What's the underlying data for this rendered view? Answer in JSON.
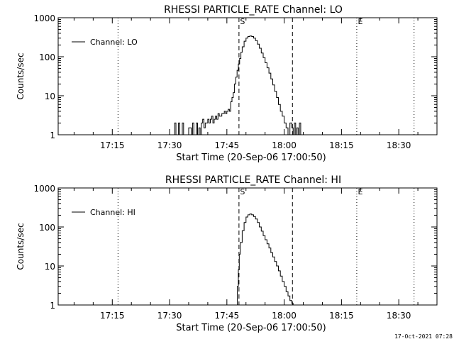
{
  "footer": {
    "timestamp": "17-Oct-2021 07:28"
  },
  "chart_data": [
    {
      "type": "line",
      "title": "RHESSI PARTICLE_RATE Channel: LO",
      "xlabel": "Start Time (20-Sep-06 17:00:50)",
      "ylabel": "Counts/sec",
      "yscale": "log",
      "ylim": [
        1,
        1000
      ],
      "xlim": [
        "17:00:50",
        "18:40:00"
      ],
      "xticks": [
        "17:15",
        "17:30",
        "17:45",
        "18:00",
        "18:15",
        "18:30"
      ],
      "yticks": [
        "1",
        "10",
        "100",
        "1000"
      ],
      "legend": {
        "label": "Channel: LO",
        "placement": "top-left"
      },
      "markers": [
        {
          "label": "",
          "time": "17:16:30",
          "style": "dotted"
        },
        {
          "label": "S",
          "time": "17:48:10",
          "style": "dashed"
        },
        {
          "label": "",
          "time": "18:02:10",
          "style": "dashed"
        },
        {
          "label": "E",
          "time": "18:19:00",
          "style": "dotted"
        },
        {
          "label": "",
          "time": "18:34:00",
          "style": "dotted"
        }
      ],
      "series": [
        {
          "x": [
            "17:31:00",
            "17:31:20",
            "17:31:40",
            "17:32:00",
            "17:32:20",
            "17:32:40",
            "17:33:00",
            "17:33:20",
            "17:33:40",
            "17:34:00",
            "17:34:20",
            "17:35:00",
            "17:35:40",
            "17:36:00",
            "17:36:20",
            "17:36:40",
            "17:37:00",
            "17:37:20",
            "17:37:40",
            "17:38:00",
            "17:38:20",
            "17:38:40",
            "17:39:00",
            "17:39:20",
            "17:39:40",
            "17:40:00",
            "17:40:20",
            "17:40:40",
            "17:41:00",
            "17:41:20",
            "17:41:40",
            "17:42:00",
            "17:42:20",
            "17:42:40",
            "17:43:00",
            "17:43:20",
            "17:43:40",
            "17:44:00",
            "17:44:20",
            "17:44:40",
            "17:45:00",
            "17:45:20",
            "17:45:40",
            "17:46:00",
            "17:46:20",
            "17:46:40",
            "17:47:00",
            "17:47:20",
            "17:47:40",
            "17:48:00",
            "17:48:20",
            "17:48:40",
            "17:49:00",
            "17:49:30",
            "17:50:00",
            "17:50:30",
            "17:51:00",
            "17:51:30",
            "17:52:00",
            "17:52:30",
            "17:53:00",
            "17:53:30",
            "17:54:00",
            "17:54:30",
            "17:55:00",
            "17:55:30",
            "17:56:00",
            "17:56:30",
            "17:57:00",
            "17:57:30",
            "17:58:00",
            "17:58:30",
            "17:59:00",
            "17:59:30",
            "18:00:00",
            "18:00:30",
            "18:01:00",
            "18:01:30",
            "18:02:00",
            "18:02:20",
            "18:02:40",
            "18:03:00",
            "18:03:20",
            "18:03:40",
            "18:04:00",
            "18:04:20"
          ],
          "values": [
            1,
            2,
            1,
            1,
            2,
            1,
            1,
            2,
            1,
            1,
            1,
            1.5,
            1,
            2,
            1,
            1,
            2,
            1,
            1.5,
            1,
            2,
            2.5,
            1.5,
            2,
            2,
            2.5,
            2,
            2.5,
            3,
            2,
            2.5,
            3,
            2.5,
            3.5,
            3,
            3,
            3.5,
            3.5,
            4,
            3.5,
            4,
            4.5,
            4,
            7,
            9,
            12,
            20,
            30,
            45,
            65,
            90,
            130,
            180,
            250,
            300,
            330,
            340,
            330,
            300,
            260,
            210,
            165,
            125,
            95,
            70,
            52,
            38,
            27,
            19,
            13,
            9,
            6,
            4,
            3,
            2,
            1.5,
            1,
            2,
            1.5,
            1,
            2,
            1,
            1.5,
            1,
            2,
            1
          ]
        }
      ]
    },
    {
      "type": "line",
      "title": "RHESSI PARTICLE_RATE Channel: HI",
      "xlabel": "Start Time (20-Sep-06 17:00:50)",
      "ylabel": "Counts/sec",
      "yscale": "log",
      "ylim": [
        1,
        1000
      ],
      "xlim": [
        "17:00:50",
        "18:40:00"
      ],
      "xticks": [
        "17:15",
        "17:30",
        "17:45",
        "18:00",
        "18:15",
        "18:30"
      ],
      "yticks": [
        "1",
        "10",
        "100",
        "1000"
      ],
      "legend": {
        "label": "Channel: HI",
        "placement": "top-left"
      },
      "markers": [
        {
          "label": "",
          "time": "17:16:30",
          "style": "dotted"
        },
        {
          "label": "S",
          "time": "17:48:10",
          "style": "dashed"
        },
        {
          "label": "",
          "time": "18:02:10",
          "style": "dashed"
        },
        {
          "label": "E",
          "time": "18:19:00",
          "style": "dotted"
        },
        {
          "label": "",
          "time": "18:34:00",
          "style": "dotted"
        }
      ],
      "series": [
        {
          "x": [
            "17:47:30",
            "17:47:45",
            "17:48:00",
            "17:48:15",
            "17:48:30",
            "17:49:00",
            "17:49:30",
            "17:50:00",
            "17:50:30",
            "17:51:00",
            "17:51:30",
            "17:52:00",
            "17:52:30",
            "17:53:00",
            "17:53:30",
            "17:54:00",
            "17:54:30",
            "17:55:00",
            "17:55:30",
            "17:56:00",
            "17:56:30",
            "17:57:00",
            "17:57:30",
            "17:58:00",
            "17:58:30",
            "17:59:00",
            "17:59:30",
            "18:00:00",
            "18:00:30",
            "18:01:00",
            "18:01:30",
            "18:02:00",
            "18:02:20"
          ],
          "values": [
            1,
            3,
            8,
            20,
            40,
            80,
            130,
            180,
            205,
            215,
            205,
            185,
            160,
            130,
            100,
            78,
            60,
            47,
            37,
            29,
            22,
            17,
            13,
            10,
            7.5,
            5.5,
            4,
            3,
            2.2,
            1.7,
            1.3,
            1.1,
            1
          ]
        }
      ]
    }
  ]
}
